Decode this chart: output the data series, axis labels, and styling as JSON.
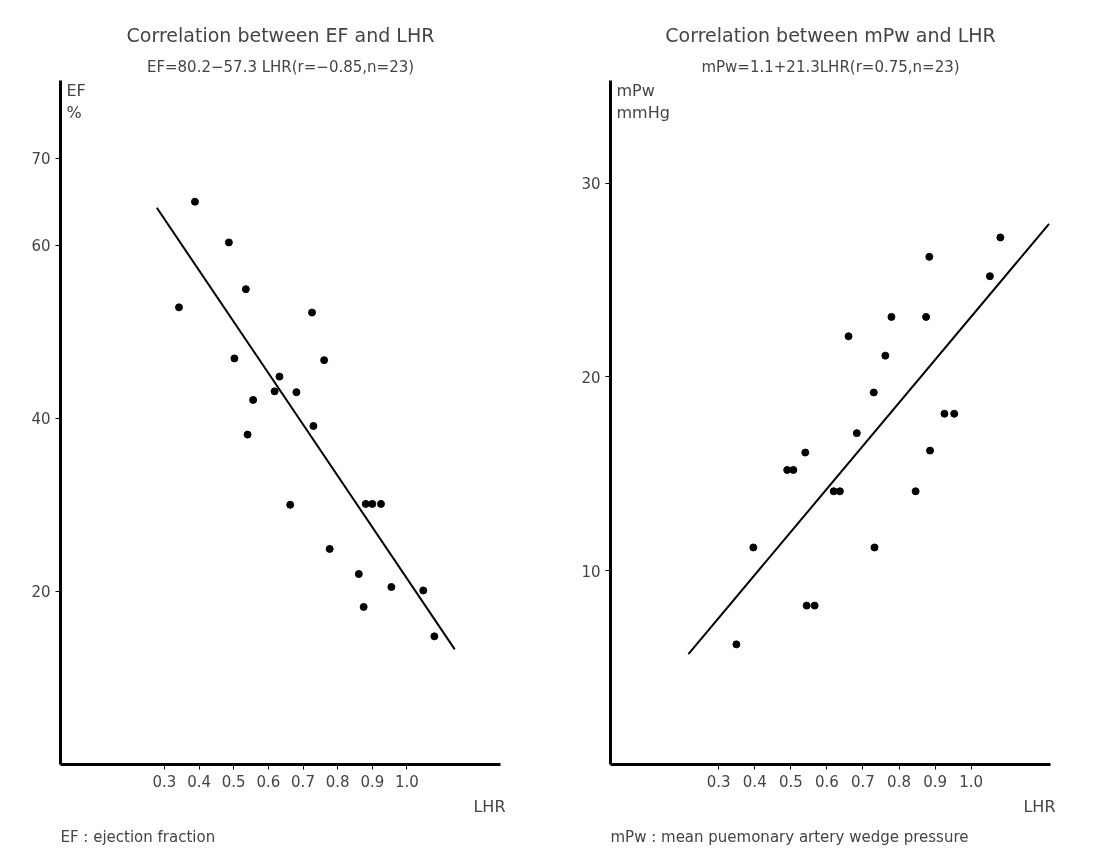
{
  "chart_data": [
    {
      "type": "scatter",
      "title": "Correlation between EF and LHR",
      "subtitle": "EF=80.2−57.3 LHR(r=−0.85,n=23)",
      "xlabel": "LHR",
      "ylabel": "EF\n%",
      "annotations": [
        "EF : ejection fraction"
      ],
      "xlim": [
        0,
        1.27
      ],
      "ylim": [
        0,
        79
      ],
      "xticks": [
        0.3,
        0.4,
        0.5,
        0.6,
        0.7,
        0.8,
        0.9,
        {
          "value": 1.0,
          "label": "1.0"
        }
      ],
      "yticks": [
        20,
        40,
        60,
        70
      ],
      "series": [
        {
          "marker": "circle",
          "color": "#000000",
          "x": [
            0.388,
            0.486,
            0.535,
            0.342,
            0.726,
            0.502,
            0.761,
            0.632,
            0.618,
            0.681,
            0.556,
            0.73,
            0.54,
            0.663,
            0.881,
            0.9,
            0.925,
            0.777,
            0.861,
            0.955,
            1.047,
            0.875,
            1.079
          ],
          "values": [
            65.0,
            60.3,
            54.9,
            52.8,
            52.2,
            46.9,
            46.7,
            44.8,
            43.1,
            43.0,
            42.1,
            39.1,
            38.1,
            30.0,
            30.1,
            30.1,
            30.1,
            24.9,
            22.0,
            20.5,
            20.1,
            18.2,
            14.8
          ]
        },
        {
          "type": "line",
          "color": "#000000",
          "x": [
            0.278,
            1.138
          ],
          "values": [
            64.3,
            13.3
          ]
        }
      ]
    },
    {
      "type": "scatter",
      "title": "Correlation between mPw and LHR",
      "subtitle": "mPw=1.1+21.3LHR(r=0.75,n=23)",
      "xlabel": "LHR",
      "ylabel": "mPw\nmmHg",
      "annotations": [
        "mPw : mean puemonary artery wedge pressure"
      ],
      "xlim": [
        0,
        1.22
      ],
      "ylim": [
        0,
        35.3
      ],
      "xticks": [
        0.3,
        0.4,
        0.5,
        0.6,
        0.7,
        0.8,
        0.9,
        {
          "value": 1.0,
          "label": "1.0"
        }
      ],
      "yticks": [
        10,
        20,
        30
      ],
      "series": [
        {
          "marker": "circle",
          "color": "#000000",
          "x": [
            1.081,
            0.884,
            1.052,
            0.779,
            0.875,
            0.66,
            0.762,
            0.73,
            0.926,
            0.953,
            0.683,
            0.54,
            0.49,
            0.507,
            0.886,
            0.619,
            0.636,
            0.846,
            0.396,
            0.732,
            0.544,
            0.566,
            0.349
          ],
          "values": [
            27.2,
            26.2,
            25.2,
            23.1,
            23.1,
            22.1,
            21.1,
            19.2,
            18.1,
            18.1,
            17.1,
            16.1,
            15.2,
            15.2,
            16.2,
            14.1,
            14.1,
            14.1,
            11.2,
            11.2,
            8.2,
            8.2,
            6.2
          ]
        },
        {
          "type": "line",
          "color": "#000000",
          "x": [
            0.216,
            1.216
          ],
          "values": [
            5.7,
            27.9
          ]
        }
      ]
    }
  ]
}
